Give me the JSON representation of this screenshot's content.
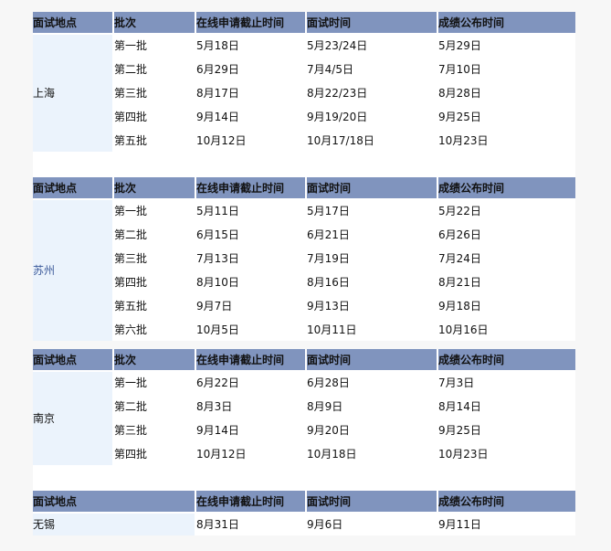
{
  "headers": {
    "location": "面试地点",
    "batch": "批次",
    "deadline": "在线申请截止时间",
    "interview": "面试时间",
    "result": "成绩公布时间"
  },
  "tables": [
    {
      "location": "上海",
      "rows": [
        [
          "第一批",
          "5月18日",
          "5月23/24日",
          "5月29日"
        ],
        [
          "第二批",
          "6月29日",
          "7月4/5日",
          "7月10日"
        ],
        [
          "第三批",
          "8月17日",
          "8月22/23日",
          "8月28日"
        ],
        [
          "第四批",
          "9月14日",
          "9月19/20日",
          "9月25日"
        ],
        [
          "第五批",
          "10月12日",
          "10月17/18日",
          "10月23日"
        ]
      ]
    },
    {
      "location": "苏州",
      "rows": [
        [
          "第一批",
          "5月11日",
          "5月17日",
          "5月22日"
        ],
        [
          "第二批",
          "6月15日",
          "6月21日",
          "6月26日"
        ],
        [
          "第三批",
          "7月13日",
          "7月19日",
          "7月24日"
        ],
        [
          "第四批",
          "8月10日",
          "8月16日",
          "8月21日"
        ],
        [
          "第五批",
          "9月7日",
          "9月13日",
          "9月18日"
        ],
        [
          "第六批",
          "10月5日",
          "10月11日",
          "10月16日"
        ]
      ]
    },
    {
      "location": "南京",
      "rows": [
        [
          "第一批",
          "6月22日",
          "6月28日",
          "7月3日"
        ],
        [
          "第二批",
          "8月3日",
          "8月9日",
          "8月14日"
        ],
        [
          "第三批",
          "9月14日",
          "9月20日",
          "9月25日"
        ],
        [
          "第四批",
          "10月12日",
          "10月18日",
          "10月23日"
        ]
      ]
    }
  ],
  "wuxi": {
    "location": "无锡",
    "deadline": "8月31日",
    "interview": "9月6日",
    "result": "9月11日"
  },
  "colors": {
    "header_bg": "#8094be",
    "location_bg": "#ebf3fc"
  }
}
